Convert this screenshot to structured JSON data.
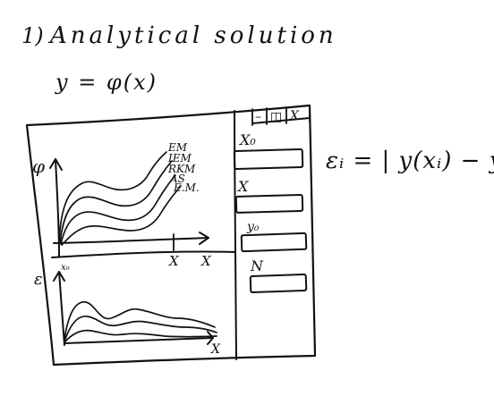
{
  "heading": {
    "number": "1)",
    "title": "Analytical solution",
    "formula": "y = φ(x)"
  },
  "window": {
    "title_buttons": {
      "minimize": "–",
      "maximize": "◫",
      "close": "X"
    }
  },
  "top_plot": {
    "y_axis_label": "φ",
    "x_axis_label": "X",
    "x_marker_label": "X",
    "legend": [
      "EM",
      "IEM",
      "RKM",
      "AS"
    ],
    "curve_note": "E.M."
  },
  "bottom_plot": {
    "y_axis_label": "ε",
    "x0_label": "x₀",
    "x_axis_label": "X"
  },
  "inputs": {
    "x0_label": "X₀",
    "x_label": "X",
    "y0_label": "y₀",
    "n_label": "N"
  },
  "error_formula": "εᵢ = | y(xᵢ) − yᵢ |",
  "colors": {
    "ink": "#111111",
    "paper": "#ffffff"
  }
}
